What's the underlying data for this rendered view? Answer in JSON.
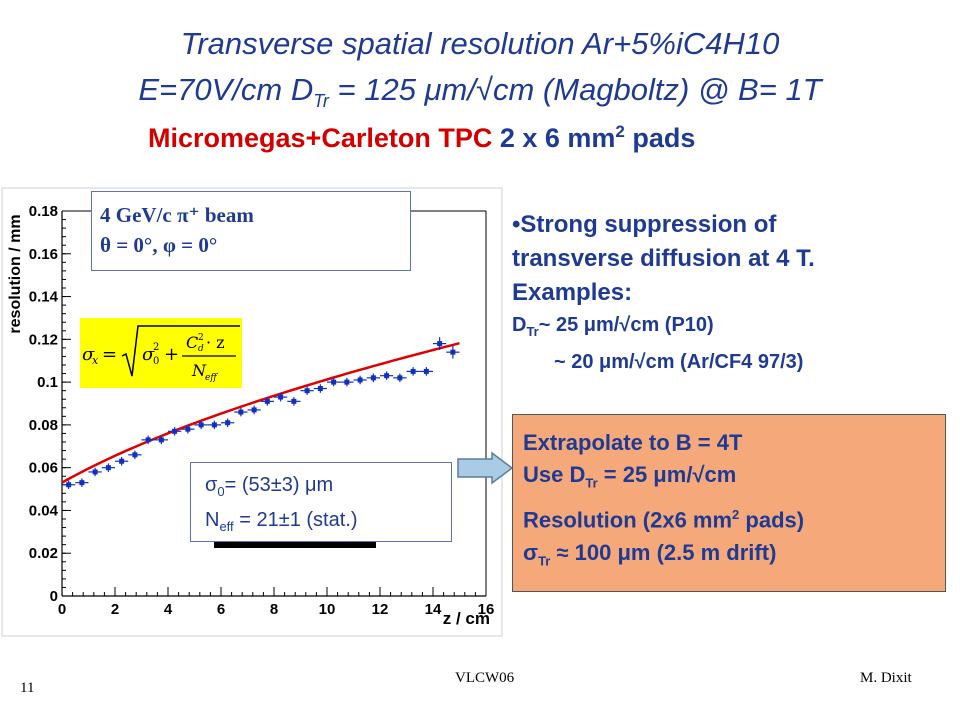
{
  "slide": {
    "title_line1": "Transverse spatial resolution Ar+5%iC4H10",
    "title_line2_a": "E=70V/cm D",
    "title_line2_sub": "Tr",
    "title_line2_b": " = 125 μm/√cm (Magboltz) @ B= 1T",
    "title_line3_red": "Micromegas+Carleton TPC",
    "title_line3_blue": " 2 x 6 mm",
    "title_line3_sup": "2",
    "title_line3_end": " pads",
    "footer_left": "VLCW06",
    "footer_right": "M. Dixit",
    "page_number": "11"
  },
  "beam_box": {
    "line1": "4 GeV/c π⁺ beam",
    "line2": "θ = 0°, φ = 0°"
  },
  "fit_box": {
    "sigma_a": "σ",
    "sigma_sub": "0",
    "sigma_b": "= (53±3) μm",
    "neff_a": "N",
    "neff_sub": "eff",
    "neff_b": " = 21±1 (stat.)"
  },
  "right_text": {
    "bullet1": "•Strong suppression of",
    "bullet2": "transverse diffusion at 4 T.",
    "examples": "Examples:",
    "ex1_a": "D",
    "ex1_sub": "Tr",
    "ex1_b": "~ 25 μm/√cm (P10)",
    "ex2": "~ 20 μm/√cm (Ar/CF4 97/3)"
  },
  "extrapolate_box": {
    "line1": "Extrapolate to B = 4T",
    "line2_a": "Use D",
    "line2_sub": "Tr",
    "line2_b": " = 25 μm/√cm",
    "line3_a": "Resolution (2x6 mm",
    "line3_sup": "2",
    "line3_b": " pads)",
    "line4_a": "σ",
    "line4_sub": "Tr",
    "line4_b": " ≈ 100 μm (2.5 m drift)"
  },
  "colors": {
    "accent_blue": "#1f3a93",
    "title_red": "#d40000",
    "fit_line": "#e00000",
    "data_points": "#1030c0",
    "formula_bg": "#ffff00",
    "extrapolate_bg": "#f5a97a"
  },
  "chart_data": {
    "type": "scatter",
    "xlabel": "z / cm",
    "ylabel": "resolution / mm",
    "xlim": [
      0,
      16
    ],
    "ylim": [
      0,
      0.18
    ],
    "x_ticks": [
      "0",
      "2",
      "4",
      "6",
      "8",
      "10",
      "12",
      "14",
      "16"
    ],
    "y_ticks": [
      "0",
      "0.02",
      "0.04",
      "0.06",
      "0.08",
      "0.1",
      "0.12",
      "0.14",
      "0.16",
      "0.18"
    ],
    "grid": false,
    "series": [
      {
        "x": [
          0.25,
          0.75,
          1.25,
          1.75,
          2.25,
          2.75,
          3.25,
          3.75,
          4.25,
          4.75,
          5.25,
          5.75,
          6.25,
          6.75,
          7.25,
          7.75,
          8.25,
          8.75,
          9.25,
          9.75,
          10.25,
          10.75,
          11.25,
          11.75,
          12.25,
          12.75,
          13.25,
          13.75,
          14.25,
          14.75
        ],
        "values": [
          0.052,
          0.053,
          0.058,
          0.06,
          0.063,
          0.066,
          0.073,
          0.073,
          0.077,
          0.078,
          0.08,
          0.08,
          0.081,
          0.086,
          0.087,
          0.091,
          0.093,
          0.091,
          0.096,
          0.097,
          0.1,
          0.1,
          0.101,
          0.102,
          0.103,
          0.102,
          0.105,
          0.105,
          0.118,
          0.114
        ],
        "errors": [
          0.002,
          0.002,
          0.002,
          0.002,
          0.002,
          0.002,
          0.002,
          0.002,
          0.002,
          0.002,
          0.002,
          0.002,
          0.002,
          0.002,
          0.002,
          0.002,
          0.002,
          0.002,
          0.002,
          0.002,
          0.002,
          0.002,
          0.002,
          0.002,
          0.002,
          0.002,
          0.002,
          0.002,
          0.003,
          0.003
        ]
      }
    ],
    "fit": {
      "sigma0_mm": 0.053,
      "neff": 21,
      "dtr_mm_per_sqrtcm": 0.125,
      "x_range": [
        0,
        15
      ]
    }
  }
}
